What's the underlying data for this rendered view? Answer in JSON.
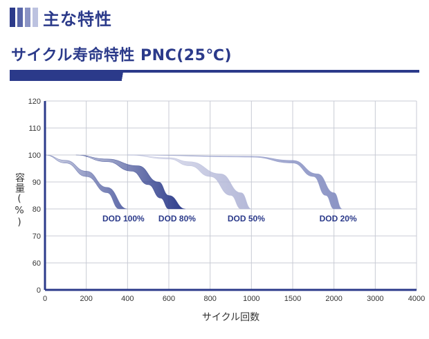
{
  "header": {
    "title": "主な特性",
    "bar_colors": [
      "#2b3a8a",
      "#5866a8",
      "#8a93c4",
      "#bcc2e0"
    ]
  },
  "subtitle": "サイクル寿命特性 PNC(25℃)",
  "colors": {
    "brand": "#2b3a8a",
    "grid": "#c8cbd4",
    "axis": "#2b3a8a"
  },
  "chart_data": {
    "type": "line",
    "xlabel": "サイクル回数",
    "ylabel": "容量(%)",
    "x_ticks": [
      "0",
      "200",
      "400",
      "600",
      "800",
      "1000",
      "1500",
      "2000",
      "3000",
      "4000"
    ],
    "y_ticks": [
      0,
      60,
      70,
      80,
      90,
      100,
      110,
      120
    ],
    "grid": true,
    "series": [
      {
        "name": "DOD 100%",
        "color": "#5a66a6",
        "upper": [
          [
            "0",
            100
          ],
          [
            "100",
            98
          ],
          [
            "200",
            94
          ],
          [
            "300",
            88
          ],
          [
            "400",
            80
          ]
        ],
        "lower": [
          [
            "0",
            100
          ],
          [
            "100",
            97
          ],
          [
            "200",
            92
          ],
          [
            "300",
            86
          ],
          [
            "360",
            80
          ]
        ]
      },
      {
        "name": "DOD 80%",
        "color": "#2b3a8a",
        "upper": [
          [
            "150",
            100
          ],
          [
            "300",
            98.5
          ],
          [
            "450",
            96
          ],
          [
            "550",
            90
          ],
          [
            "600",
            85
          ],
          [
            "680",
            80
          ]
        ],
        "lower": [
          [
            "150",
            100
          ],
          [
            "300",
            97.5
          ],
          [
            "420",
            94
          ],
          [
            "500",
            89
          ],
          [
            "560",
            84
          ],
          [
            "600",
            80
          ]
        ]
      },
      {
        "name": "DOD 50%",
        "color": "#b4b8d8",
        "upper": [
          [
            "400",
            100
          ],
          [
            "600",
            99
          ],
          [
            "700",
            97.5
          ],
          [
            "850",
            93
          ],
          [
            "950",
            86
          ],
          [
            "1000",
            80
          ]
        ],
        "lower": [
          [
            "400",
            100
          ],
          [
            "600",
            98.5
          ],
          [
            "700",
            96
          ],
          [
            "800",
            92
          ],
          [
            "900",
            85
          ],
          [
            "950",
            80
          ]
        ]
      },
      {
        "name": "DOD 20%",
        "color": "#8a93c4",
        "upper": [
          [
            "400",
            100
          ],
          [
            "1000",
            99.5
          ],
          [
            "1500",
            98
          ],
          [
            "1800",
            93
          ],
          [
            "2000",
            86
          ],
          [
            "2200",
            80
          ]
        ],
        "lower": [
          [
            "400",
            100
          ],
          [
            "1000",
            99.2
          ],
          [
            "1500",
            97
          ],
          [
            "1750",
            92
          ],
          [
            "1900",
            85
          ],
          [
            "2000",
            80
          ]
        ]
      }
    ]
  }
}
